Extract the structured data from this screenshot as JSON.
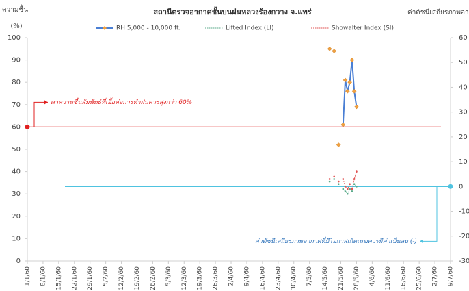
{
  "chart_data": {
    "type": "line",
    "title": "สถานีตรวจอากาศชั้นบนฝนหลวงร้องกวาง จ.แพร่",
    "ylabel": [
      "ความชื้น",
      "(%)"
    ],
    "y2label": "ค่าดัชนีเสถียรภาพอากาศ",
    "x": [
      135,
      136,
      137,
      138,
      139,
      140,
      141,
      142,
      143,
      144,
      145,
      146,
      147
    ],
    "xlim": [
      0,
      189
    ],
    "xticks": [
      {
        "value": 0,
        "label": "1/1/60"
      },
      {
        "value": 7,
        "label": "8/1/60"
      },
      {
        "value": 14,
        "label": "15/1/60"
      },
      {
        "value": 21,
        "label": "22/1/60"
      },
      {
        "value": 28,
        "label": "29/1/60"
      },
      {
        "value": 35,
        "label": "5/2/60"
      },
      {
        "value": 42,
        "label": "12/2/60"
      },
      {
        "value": 49,
        "label": "19/2/60"
      },
      {
        "value": 56,
        "label": "26/2/60"
      },
      {
        "value": 63,
        "label": "5/3/60"
      },
      {
        "value": 70,
        "label": "12/3/60"
      },
      {
        "value": 77,
        "label": "19/3/60"
      },
      {
        "value": 84,
        "label": "26/3/60"
      },
      {
        "value": 91,
        "label": "2/4/60"
      },
      {
        "value": 98,
        "label": "9/4/60"
      },
      {
        "value": 105,
        "label": "16/4/60"
      },
      {
        "value": 112,
        "label": "23/4/60"
      },
      {
        "value": 119,
        "label": "30/4/60"
      },
      {
        "value": 126,
        "label": "7/5/60"
      },
      {
        "value": 133,
        "label": "14/5/60"
      },
      {
        "value": 140,
        "label": "21/5/60"
      },
      {
        "value": 147,
        "label": "28/5/60"
      },
      {
        "value": 154,
        "label": "4/6/60"
      },
      {
        "value": 161,
        "label": "11/6/60"
      },
      {
        "value": 168,
        "label": "18/6/60"
      },
      {
        "value": 175,
        "label": "25/6/60"
      },
      {
        "value": 182,
        "label": "2/7/60"
      },
      {
        "value": 189,
        "label": "9/7/60"
      }
    ],
    "ylim": [
      0,
      100
    ],
    "yticks": [
      0,
      10,
      20,
      30,
      40,
      50,
      60,
      70,
      80,
      90,
      100
    ],
    "y2lim": [
      -30,
      60
    ],
    "y2ticks": [
      -30,
      -20,
      -10,
      0,
      10,
      20,
      30,
      40,
      50,
      60
    ],
    "series": [
      {
        "name": "RH 5,000 - 10,000 ft.",
        "color": "#4a7fd4",
        "marker_color": "#f0a040",
        "values": [
          95,
          null,
          94,
          null,
          52,
          null,
          61,
          81,
          76,
          80,
          90,
          76,
          69
        ]
      },
      {
        "name": "Lifted Index (LI)",
        "color": "#5aaa8a",
        "axis": "y2",
        "values": [
          2,
          null,
          3,
          null,
          1,
          null,
          -1,
          -2,
          -3,
          -1,
          -2,
          1,
          0
        ]
      },
      {
        "name": "Showalter Index (SI)",
        "color": "#e05050",
        "axis": "y2",
        "values": [
          3,
          null,
          4,
          null,
          2,
          null,
          3,
          0,
          -1,
          1,
          -1,
          3,
          6
        ]
      }
    ],
    "annotations": [
      {
        "text": "ค่าความชื้นสัมพัทธ์ที่เอื้อต่อการทำฝนควรสูงกว่า 60%",
        "value": 60,
        "axis": "y",
        "color": "#e02020"
      },
      {
        "text": "ค่าดัชนีเสถียรภาพอากาศที่มีโอกาสเกิดเมฆควรมีค่าเป็นลบ (-)",
        "value": 0,
        "axis": "y2",
        "color": "#4fc3e0"
      }
    ]
  }
}
